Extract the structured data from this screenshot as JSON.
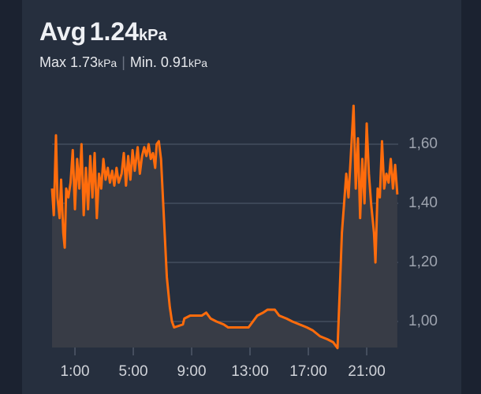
{
  "header": {
    "avg_label": "Avg",
    "avg": "1.24",
    "unit": "kPa",
    "max_label": "Max",
    "max": "1.73",
    "min_label": "Min.",
    "min": "0.91"
  },
  "chart_data": {
    "type": "line",
    "x": [
      -0.57,
      -0.45,
      -0.3,
      -0.2,
      -0.05,
      0.05,
      0.2,
      0.3,
      0.4,
      0.55,
      0.7,
      0.85,
      1.0,
      1.15,
      1.3,
      1.45,
      1.6,
      1.75,
      1.9,
      2.05,
      2.2,
      2.35,
      2.5,
      2.65,
      2.8,
      2.95,
      3.1,
      3.25,
      3.4,
      3.55,
      3.7,
      3.85,
      4.0,
      4.2,
      4.35,
      4.5,
      4.65,
      4.8,
      4.95,
      5.1,
      5.3,
      5.45,
      5.6,
      5.75,
      5.9,
      6.05,
      6.2,
      6.35,
      6.5,
      6.6,
      6.75,
      6.9,
      7.1,
      7.3,
      7.5,
      7.65,
      7.8,
      8.4,
      8.5,
      8.9,
      9.7,
      10.0,
      10.3,
      10.7,
      11.2,
      11.5,
      12.9,
      13.2,
      13.5,
      13.9,
      14.2,
      14.7,
      15.0,
      15.5,
      15.9,
      16.4,
      16.9,
      17.3,
      17.8,
      18.3,
      18.7,
      19.0,
      19.15,
      19.3,
      19.45,
      19.6,
      19.75,
      19.9,
      20.1,
      20.25,
      20.4,
      20.55,
      20.7,
      20.85,
      21.0,
      21.15,
      21.3,
      21.5,
      21.6,
      21.75,
      21.9,
      22.05,
      22.2,
      22.35,
      22.5,
      22.65,
      22.8,
      22.95,
      23.1
    ],
    "series": [
      {
        "color": "#ff6c0c",
        "values": [
          1.45,
          1.36,
          1.63,
          1.42,
          1.35,
          1.48,
          1.3,
          1.25,
          1.45,
          1.42,
          1.47,
          1.58,
          1.38,
          1.55,
          1.45,
          1.6,
          1.36,
          1.52,
          1.38,
          1.56,
          1.42,
          1.57,
          1.35,
          1.5,
          1.45,
          1.55,
          1.48,
          1.52,
          1.47,
          1.51,
          1.46,
          1.52,
          1.47,
          1.5,
          1.57,
          1.46,
          1.56,
          1.48,
          1.58,
          1.51,
          1.59,
          1.5,
          1.56,
          1.59,
          1.56,
          1.6,
          1.55,
          1.57,
          1.52,
          1.6,
          1.61,
          1.55,
          1.35,
          1.15,
          1.05,
          1.0,
          0.98,
          0.99,
          1.01,
          1.02,
          1.02,
          1.03,
          1.01,
          1.0,
          0.99,
          0.98,
          0.98,
          1.0,
          1.02,
          1.03,
          1.04,
          1.04,
          1.02,
          1.01,
          1.0,
          0.99,
          0.98,
          0.97,
          0.95,
          0.94,
          0.93,
          0.91,
          1.1,
          1.3,
          1.4,
          1.5,
          1.42,
          1.55,
          1.73,
          1.45,
          1.62,
          1.35,
          1.55,
          1.4,
          1.67,
          1.5,
          1.4,
          1.3,
          1.2,
          1.45,
          1.42,
          1.61,
          1.45,
          1.5,
          1.47,
          1.55,
          1.45,
          1.53,
          1.43
        ]
      }
    ],
    "area_color": "#383c46",
    "xlim": [
      -0.57,
      23.16
    ],
    "xticks": [
      {
        "value": 1,
        "label": "1:00"
      },
      {
        "value": 5,
        "label": "5:00"
      },
      {
        "value": 9,
        "label": "9:00"
      },
      {
        "value": 13,
        "label": "13:00"
      },
      {
        "value": 17,
        "label": "17:00"
      },
      {
        "value": 21,
        "label": "21:00"
      }
    ],
    "ylim": [
      0.912,
      1.76
    ],
    "yticks": [
      {
        "value": 1.0,
        "label": "1,00"
      },
      {
        "value": 1.2,
        "label": "1,20"
      },
      {
        "value": 1.4,
        "label": "1,40"
      },
      {
        "value": 1.6,
        "label": "1,60"
      }
    ],
    "grid": true
  }
}
